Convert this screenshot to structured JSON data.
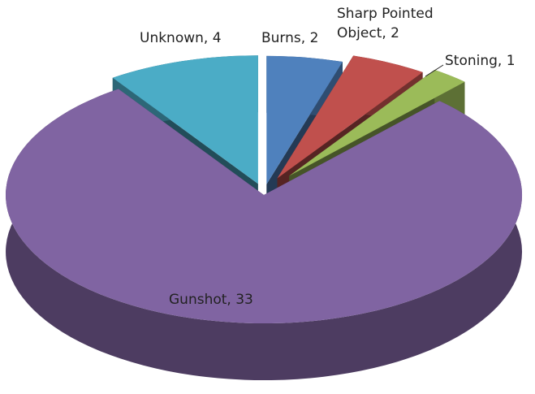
{
  "chart_data": {
    "type": "pie3d",
    "values": [
      2,
      2,
      1,
      33,
      4
    ],
    "value_labels": [
      "Burns, 2",
      "Sharp Pointed Object, 2",
      "Stoning, 1",
      "Gunshot, 33",
      "Unknown, 4"
    ],
    "colors": [
      "#4f81bd",
      "#c0504d",
      "#9bbb59",
      "#8064a2",
      "#4bacc6"
    ]
  }
}
